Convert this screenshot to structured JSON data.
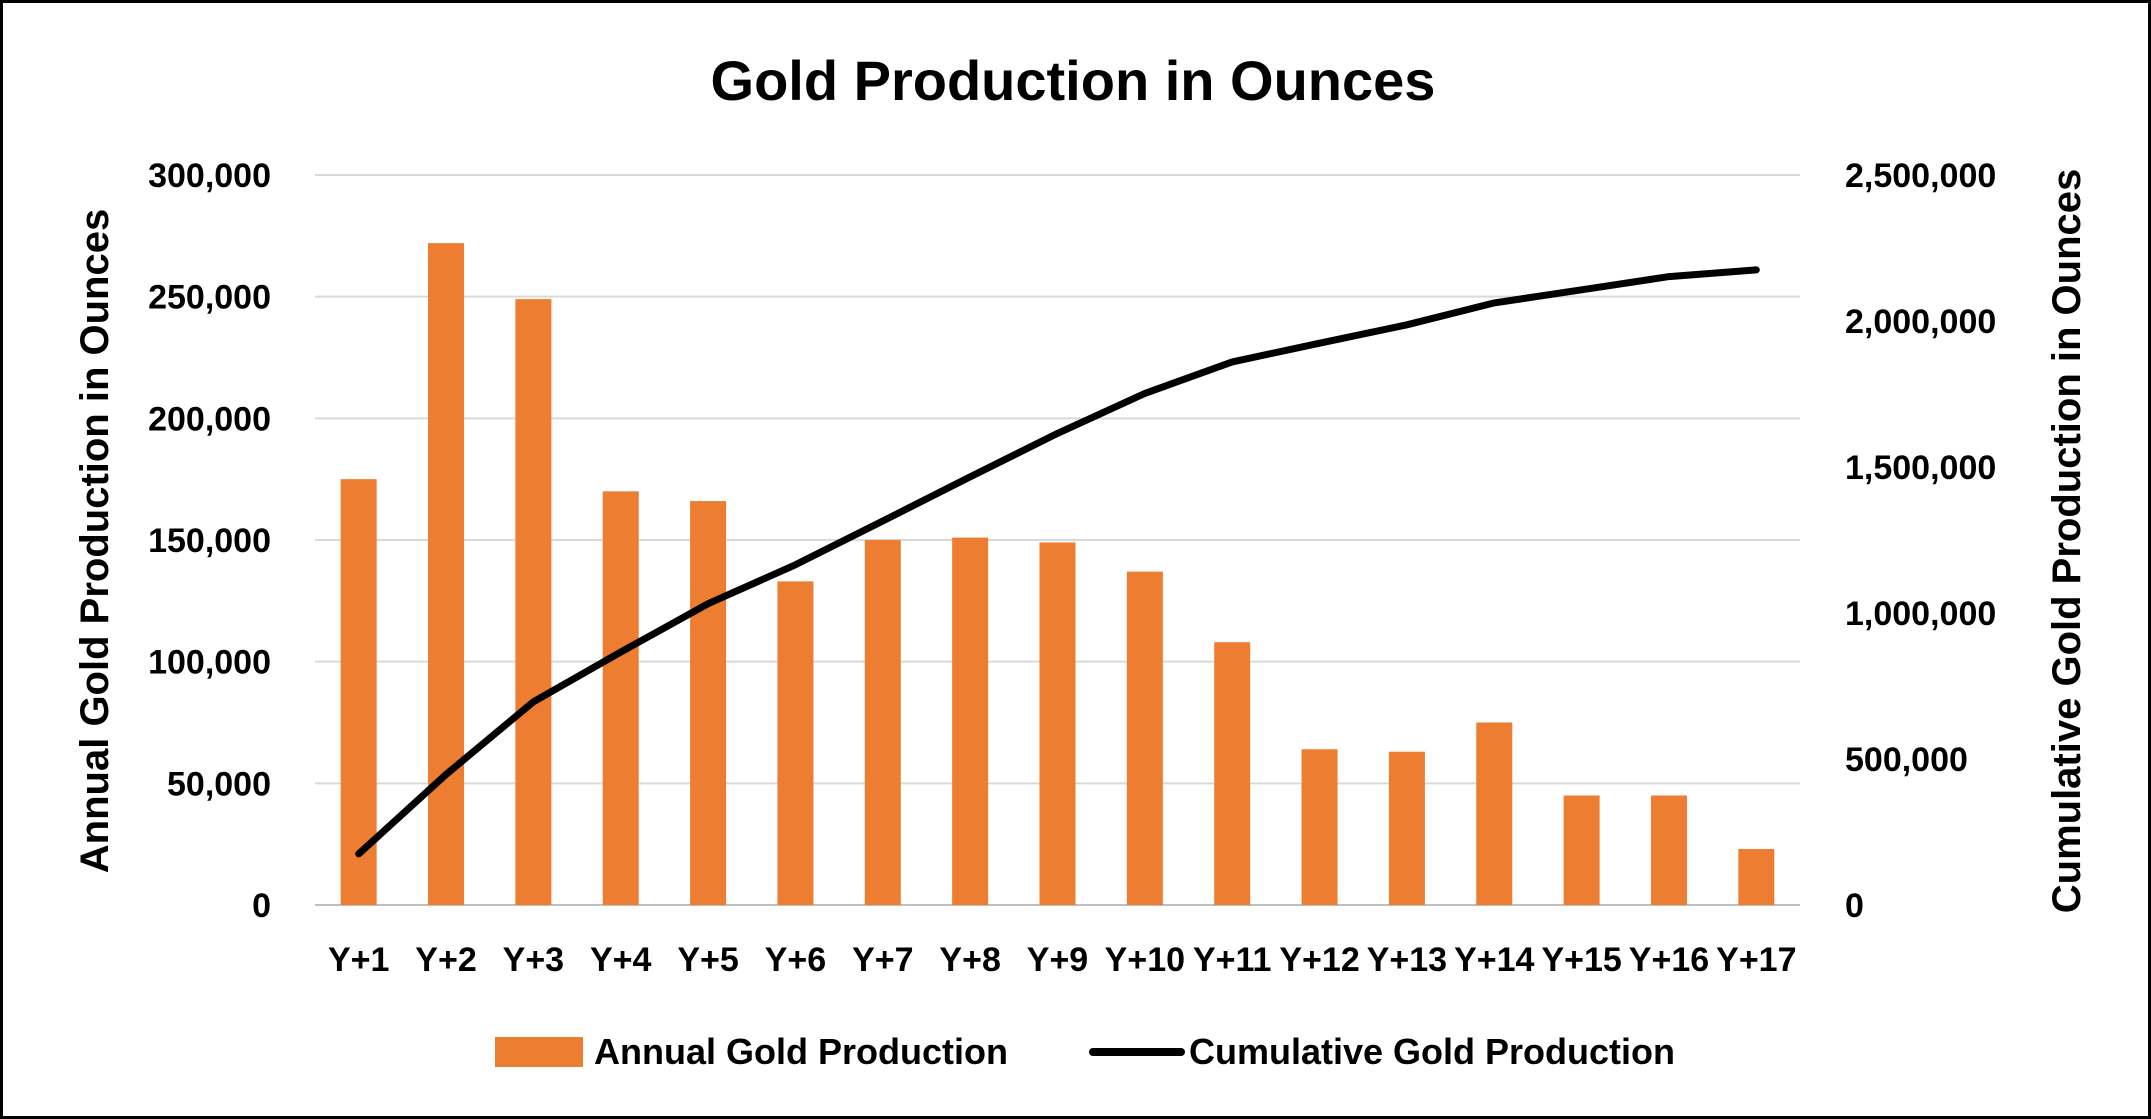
{
  "chart_data": {
    "type": "bar",
    "title": "Gold Production in Ounces",
    "categories": [
      "Y+1",
      "Y+2",
      "Y+3",
      "Y+4",
      "Y+5",
      "Y+6",
      "Y+7",
      "Y+8",
      "Y+9",
      "Y+10",
      "Y+11",
      "Y+12",
      "Y+13",
      "Y+14",
      "Y+15",
      "Y+16",
      "Y+17"
    ],
    "series": [
      {
        "name": "Annual Gold Production",
        "type": "bar",
        "axis": "left",
        "color": "#ED7D31",
        "values": [
          175000,
          272000,
          249000,
          170000,
          166000,
          133000,
          150000,
          151000,
          149000,
          137000,
          108000,
          64000,
          63000,
          75000,
          45000,
          45000,
          23000
        ]
      },
      {
        "name": "Cumulative Gold Production",
        "type": "line",
        "axis": "right",
        "color": "#000000",
        "values": [
          175000,
          447000,
          696000,
          866000,
          1032000,
          1165000,
          1315000,
          1466000,
          1615000,
          1752000,
          1860000,
          1924000,
          1987000,
          2062000,
          2107000,
          2152000,
          2175000
        ]
      }
    ],
    "ylabel": "Annual Gold Production in Ounces",
    "y2label": "Cumulative Gold Production in Ounces",
    "ylim": [
      0,
      300000
    ],
    "y2lim": [
      0,
      2500000
    ],
    "yticks": [
      "0",
      "50,000",
      "100,000",
      "150,000",
      "200,000",
      "250,000",
      "300,000"
    ],
    "y2ticks": [
      "0",
      "500,000",
      "1,000,000",
      "1,500,000",
      "2,000,000",
      "2,500,000"
    ],
    "grid": true,
    "legend": "bottom"
  }
}
